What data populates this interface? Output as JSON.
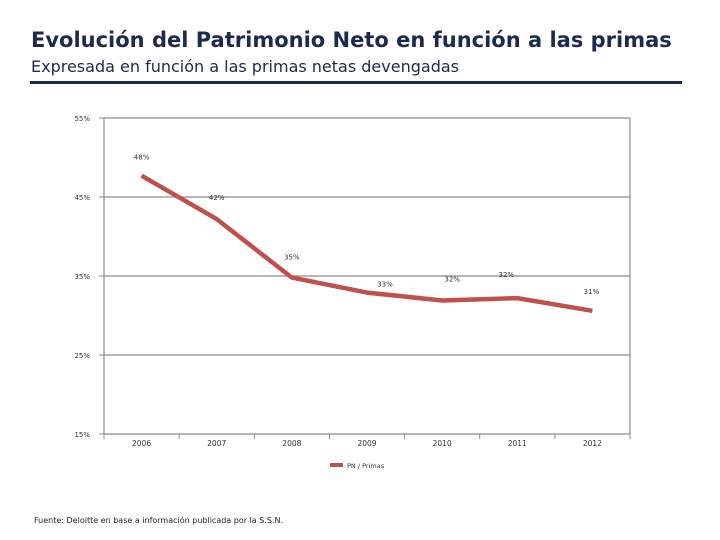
{
  "title": "Evolución del Patrimonio Neto en función a las primas",
  "subtitle": "Expresada en función a las primas netas devengadas",
  "source": "Fuente: Deloitte en base a información publicada por la S.S.N.",
  "colors": {
    "title": "#1b2a4e",
    "line": "#c0504d",
    "grid": "#8c8c8c"
  },
  "chart_data": {
    "type": "line",
    "title": "",
    "xlabel": "",
    "ylabel": "",
    "categories": [
      "2006",
      "2007",
      "2008",
      "2009",
      "2010",
      "2011",
      "2012"
    ],
    "series": [
      {
        "name": "PN / Primas",
        "values": [
          48,
          42,
          35,
          33,
          32,
          32,
          31
        ],
        "labels": [
          "48%",
          "42%",
          "35%",
          "33%",
          "32%",
          "32%",
          "31%"
        ],
        "plot_values": [
          47.7,
          42.2,
          34.8,
          32.9,
          31.9,
          32.2,
          30.6
        ]
      }
    ],
    "yticks": [
      55,
      45,
      35,
      25,
      15
    ],
    "ytick_labels": [
      "55%",
      "45%",
      "35%",
      "25%",
      "15%"
    ],
    "ylim": [
      15,
      55
    ],
    "grid": true,
    "legend": "bottom"
  }
}
